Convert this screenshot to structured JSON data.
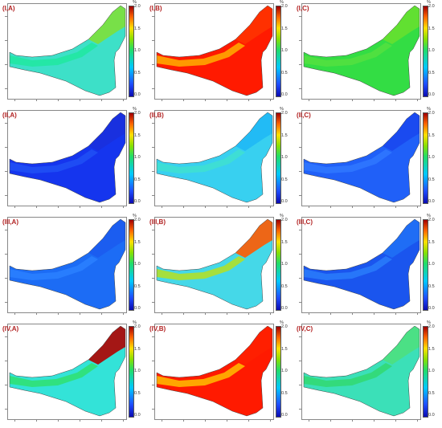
{
  "colorbar": {
    "unit": "%",
    "ticks": [
      "2.0",
      "1.5",
      "1.0",
      "0.5",
      "0.0"
    ]
  },
  "panels": [
    {
      "label": "(I,A)",
      "palette": {
        "main": "#3de0c8",
        "north": "#7ee03a",
        "coast": "#20e8a0"
      }
    },
    {
      "label": "(I,B)",
      "palette": {
        "main": "#ff1a00",
        "north": "#ff3300",
        "coast": "#ffb000"
      }
    },
    {
      "label": "(I,C)",
      "palette": {
        "main": "#33dd44",
        "north": "#66e030",
        "coast": "#55e040"
      }
    },
    {
      "label": "(II,A)",
      "palette": {
        "main": "#1535ee",
        "north": "#1a30dd",
        "coast": "#2050f5"
      }
    },
    {
      "label": "(II,B)",
      "palette": {
        "main": "#38d0f0",
        "north": "#20b8f5",
        "coast": "#40e0d0"
      }
    },
    {
      "label": "(II,C)",
      "palette": {
        "main": "#2060f8",
        "north": "#1a48ee",
        "coast": "#3078ff"
      }
    },
    {
      "label": "(III,A)",
      "palette": {
        "main": "#1c6cf5",
        "north": "#1c5cf0",
        "coast": "#2a80ff"
      }
    },
    {
      "label": "(III,B)",
      "palette": {
        "main": "#45d8e8",
        "north": "#ff5a00",
        "coast": "#b6e020"
      }
    },
    {
      "label": "(III,C)",
      "palette": {
        "main": "#1a55ee",
        "north": "#2070f5",
        "coast": "#2a7cfa"
      }
    },
    {
      "label": "(IV,A)",
      "palette": {
        "main": "#33e3d8",
        "north": "#b00000",
        "coast": "#30e070"
      }
    },
    {
      "label": "(IV,B)",
      "palette": {
        "main": "#ff1a00",
        "north": "#ff2000",
        "coast": "#ffc000"
      }
    },
    {
      "label": "(IV,C)",
      "palette": {
        "main": "#3be0b8",
        "north": "#4ee080",
        "coast": "#33d870"
      }
    }
  ]
}
